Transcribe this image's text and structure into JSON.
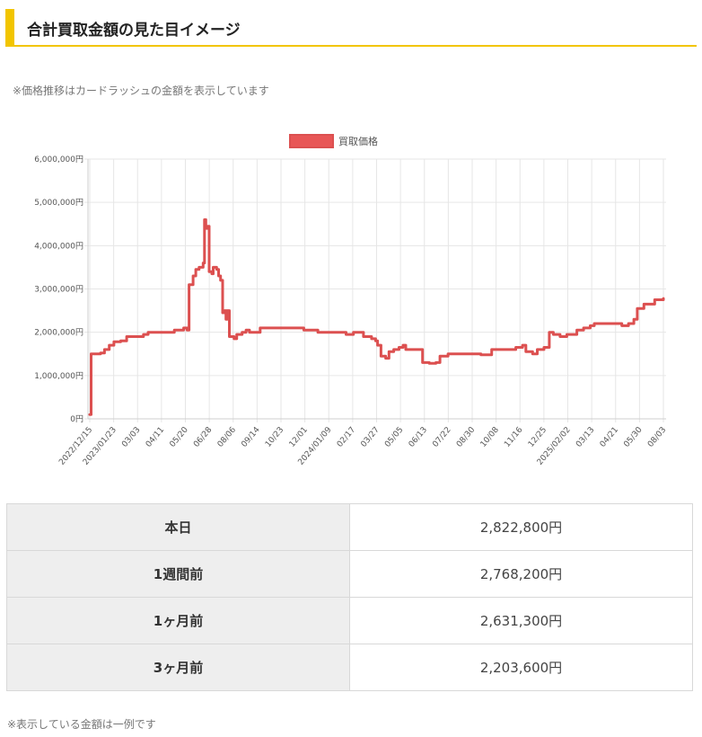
{
  "heading": {
    "title": "合計買取金額の見た目イメージ"
  },
  "note_top": "※価格推移はカードラッシュの金額を表示しています",
  "note_bottom": "※表示している金額は一例です",
  "colors": {
    "accent": "#f2c500",
    "series_line": "#dc5050",
    "series_fill": "#e85656",
    "grid": "#e6e6e6"
  },
  "chart_data": {
    "type": "line",
    "legend_position": "top",
    "grid": true,
    "series": [
      {
        "name": "買取価格",
        "points": [
          [
            "2022-12-15",
            100000
          ],
          [
            "2022-12-17",
            1500000
          ],
          [
            "2022-12-31",
            1520000
          ],
          [
            "2023-01-06",
            1600000
          ],
          [
            "2023-01-13",
            1700000
          ],
          [
            "2023-01-20",
            1780000
          ],
          [
            "2023-01-30",
            1800000
          ],
          [
            "2023-02-08",
            1900000
          ],
          [
            "2023-02-24",
            1900000
          ],
          [
            "2023-03-05",
            1950000
          ],
          [
            "2023-03-12",
            2000000
          ],
          [
            "2023-03-20",
            2000000
          ],
          [
            "2023-04-11",
            2000000
          ],
          [
            "2023-04-20",
            2050000
          ],
          [
            "2023-05-04",
            2100000
          ],
          [
            "2023-05-09",
            2050000
          ],
          [
            "2023-05-12",
            3100000
          ],
          [
            "2023-05-18",
            3300000
          ],
          [
            "2023-05-22",
            3450000
          ],
          [
            "2023-05-27",
            3500000
          ],
          [
            "2023-06-02",
            3600000
          ],
          [
            "2023-06-04",
            4600000
          ],
          [
            "2023-06-06",
            4400000
          ],
          [
            "2023-06-09",
            4450000
          ],
          [
            "2023-06-11",
            3400000
          ],
          [
            "2023-06-15",
            3350000
          ],
          [
            "2023-06-17",
            3500000
          ],
          [
            "2023-06-22",
            3450000
          ],
          [
            "2023-06-25",
            3300000
          ],
          [
            "2023-06-28",
            3200000
          ],
          [
            "2023-07-01",
            2450000
          ],
          [
            "2023-07-04",
            2500000
          ],
          [
            "2023-07-06",
            2300000
          ],
          [
            "2023-07-08",
            2500000
          ],
          [
            "2023-07-11",
            1900000
          ],
          [
            "2023-07-18",
            1850000
          ],
          [
            "2023-07-22",
            1950000
          ],
          [
            "2023-07-30",
            2000000
          ],
          [
            "2023-08-05",
            2050000
          ],
          [
            "2023-08-10",
            2000000
          ],
          [
            "2023-08-20",
            2000000
          ],
          [
            "2023-08-26",
            2100000
          ],
          [
            "2023-09-14",
            2100000
          ],
          [
            "2023-10-23",
            2100000
          ],
          [
            "2023-10-30",
            2050000
          ],
          [
            "2023-11-20",
            2000000
          ],
          [
            "2023-12-20",
            2000000
          ],
          [
            "2024-01-01",
            1950000
          ],
          [
            "2024-01-12",
            2000000
          ],
          [
            "2024-01-23",
            2000000
          ],
          [
            "2024-01-27",
            1900000
          ],
          [
            "2024-02-08",
            1850000
          ],
          [
            "2024-02-14",
            1800000
          ],
          [
            "2024-02-17",
            1700000
          ],
          [
            "2024-02-22",
            1450000
          ],
          [
            "2024-02-29",
            1400000
          ],
          [
            "2024-03-05",
            1550000
          ],
          [
            "2024-03-12",
            1600000
          ],
          [
            "2024-03-20",
            1650000
          ],
          [
            "2024-03-26",
            1700000
          ],
          [
            "2024-03-30",
            1600000
          ],
          [
            "2024-04-13",
            1600000
          ],
          [
            "2024-04-20",
            1600000
          ],
          [
            "2024-04-24",
            1300000
          ],
          [
            "2024-05-04",
            1280000
          ],
          [
            "2024-05-14",
            1300000
          ],
          [
            "2024-05-20",
            1450000
          ],
          [
            "2024-06-01",
            1500000
          ],
          [
            "2024-06-20",
            1500000
          ],
          [
            "2024-07-20",
            1480000
          ],
          [
            "2024-08-01",
            1480000
          ],
          [
            "2024-08-05",
            1600000
          ],
          [
            "2024-08-30",
            1600000
          ],
          [
            "2024-09-10",
            1650000
          ],
          [
            "2024-09-20",
            1700000
          ],
          [
            "2024-09-25",
            1550000
          ],
          [
            "2024-10-05",
            1500000
          ],
          [
            "2024-10-12",
            1600000
          ],
          [
            "2024-10-22",
            1650000
          ],
          [
            "2024-10-30",
            2000000
          ],
          [
            "2024-11-05",
            1950000
          ],
          [
            "2024-11-15",
            1900000
          ],
          [
            "2024-11-25",
            1950000
          ],
          [
            "2024-12-10",
            2050000
          ],
          [
            "2024-12-20",
            2100000
          ],
          [
            "2024-12-30",
            2150000
          ],
          [
            "2025-01-05",
            2200000
          ],
          [
            "2025-02-05",
            2200000
          ],
          [
            "2025-02-15",
            2150000
          ],
          [
            "2025-02-25",
            2200000
          ],
          [
            "2025-03-05",
            2300000
          ],
          [
            "2025-03-10",
            2550000
          ],
          [
            "2025-03-20",
            2650000
          ],
          [
            "2025-04-01",
            2650000
          ],
          [
            "2025-04-05",
            2750000
          ],
          [
            "2025-04-18",
            2780000
          ]
        ]
      }
    ],
    "x_tick_labels": [
      "2022/12/15",
      "2023/01/23",
      "03/03",
      "04/11",
      "05/20",
      "06/28",
      "08/06",
      "09/14",
      "10/23",
      "12/01",
      "2024/01/09",
      "02/17",
      "03/27",
      "05/05",
      "06/13",
      "07/22",
      "08/30",
      "10/08",
      "11/16",
      "12/25",
      "2025/02/02",
      "03/13",
      "04/21",
      "05/30",
      "08/03"
    ],
    "y_tick_labels": [
      "6,000,000円",
      "5,000,000円",
      "4,000,000円",
      "3,000,000円",
      "2,000,000円",
      "1,000,000円",
      "0円"
    ],
    "ylim": [
      0,
      6000000
    ]
  },
  "table": {
    "rows": [
      {
        "label": "本日",
        "value": "2,822,800円"
      },
      {
        "label": "1週間前",
        "value": "2,768,200円"
      },
      {
        "label": "1ヶ月前",
        "value": "2,631,300円"
      },
      {
        "label": "3ヶ月前",
        "value": "2,203,600円"
      }
    ]
  }
}
